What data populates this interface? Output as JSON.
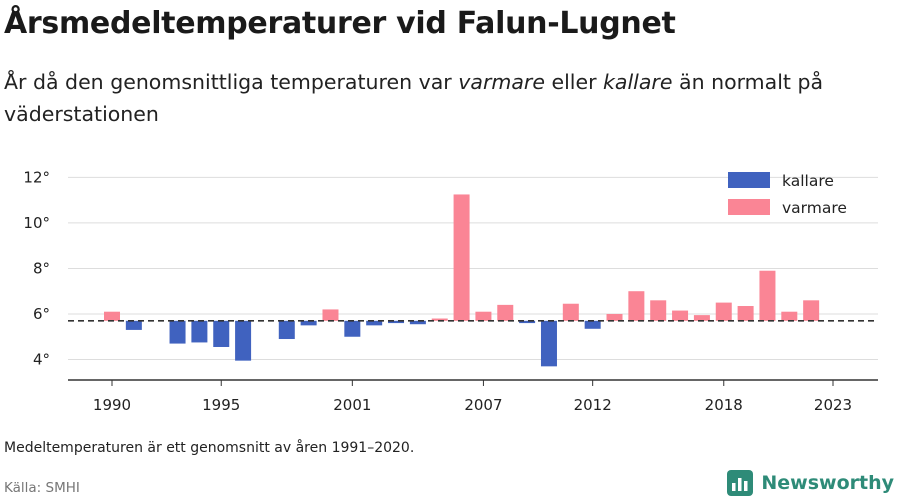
{
  "title": "Årsmedeltemperaturer vid Falun-Lugnet",
  "subtitle": {
    "part1": "År då den genomsnittliga temperaturen var ",
    "emph1": "varmare",
    "part2": " eller ",
    "emph2": "kallare",
    "part3": " än normalt på väderstationen"
  },
  "note": "Medeltemperaturen är ett genomsnitt av åren 1991–2020.",
  "source": "Källa: SMHI",
  "brand": {
    "name": "Newsworthy",
    "logo_icon": "newsworthy-logo-icon"
  },
  "colors": {
    "kallare": "#4062bf",
    "varmare": "#fa8595",
    "baseline": "#333333",
    "grid": "#dddddd"
  },
  "chart_data": {
    "type": "bar",
    "baseline": 5.7,
    "ylim": [
      3.1,
      12.5
    ],
    "yticks": [
      4,
      6,
      8,
      10,
      12
    ],
    "ytick_labels": [
      "4°",
      "6°",
      "8°",
      "10°",
      "12°"
    ],
    "xticks": [
      1990,
      1995,
      2001,
      2007,
      2012,
      2018,
      2023
    ],
    "xtick_labels": [
      "1990",
      "1995",
      "2001",
      "2007",
      "2012",
      "2018",
      "2023"
    ],
    "legend": [
      {
        "key": "kallare",
        "label": "kallare"
      },
      {
        "key": "varmare",
        "label": "varmare"
      }
    ],
    "legend_position": "top-right",
    "x": [
      1990,
      1991,
      1992,
      1993,
      1994,
      1995,
      1996,
      1997,
      1998,
      1999,
      2000,
      2001,
      2002,
      2003,
      2004,
      2005,
      2006,
      2007,
      2008,
      2009,
      2010,
      2011,
      2012,
      2013,
      2014,
      2015,
      2016,
      2017,
      2018,
      2019,
      2020,
      2021,
      2022
    ],
    "values": [
      6.1,
      5.3,
      null,
      4.7,
      4.75,
      4.55,
      3.95,
      null,
      4.9,
      5.5,
      6.2,
      5.0,
      5.5,
      5.6,
      5.55,
      5.8,
      11.25,
      6.1,
      6.4,
      5.6,
      3.7,
      6.45,
      5.35,
      6.0,
      7.0,
      6.6,
      6.15,
      5.95,
      6.5,
      6.35,
      7.9,
      6.1,
      6.6
    ]
  }
}
